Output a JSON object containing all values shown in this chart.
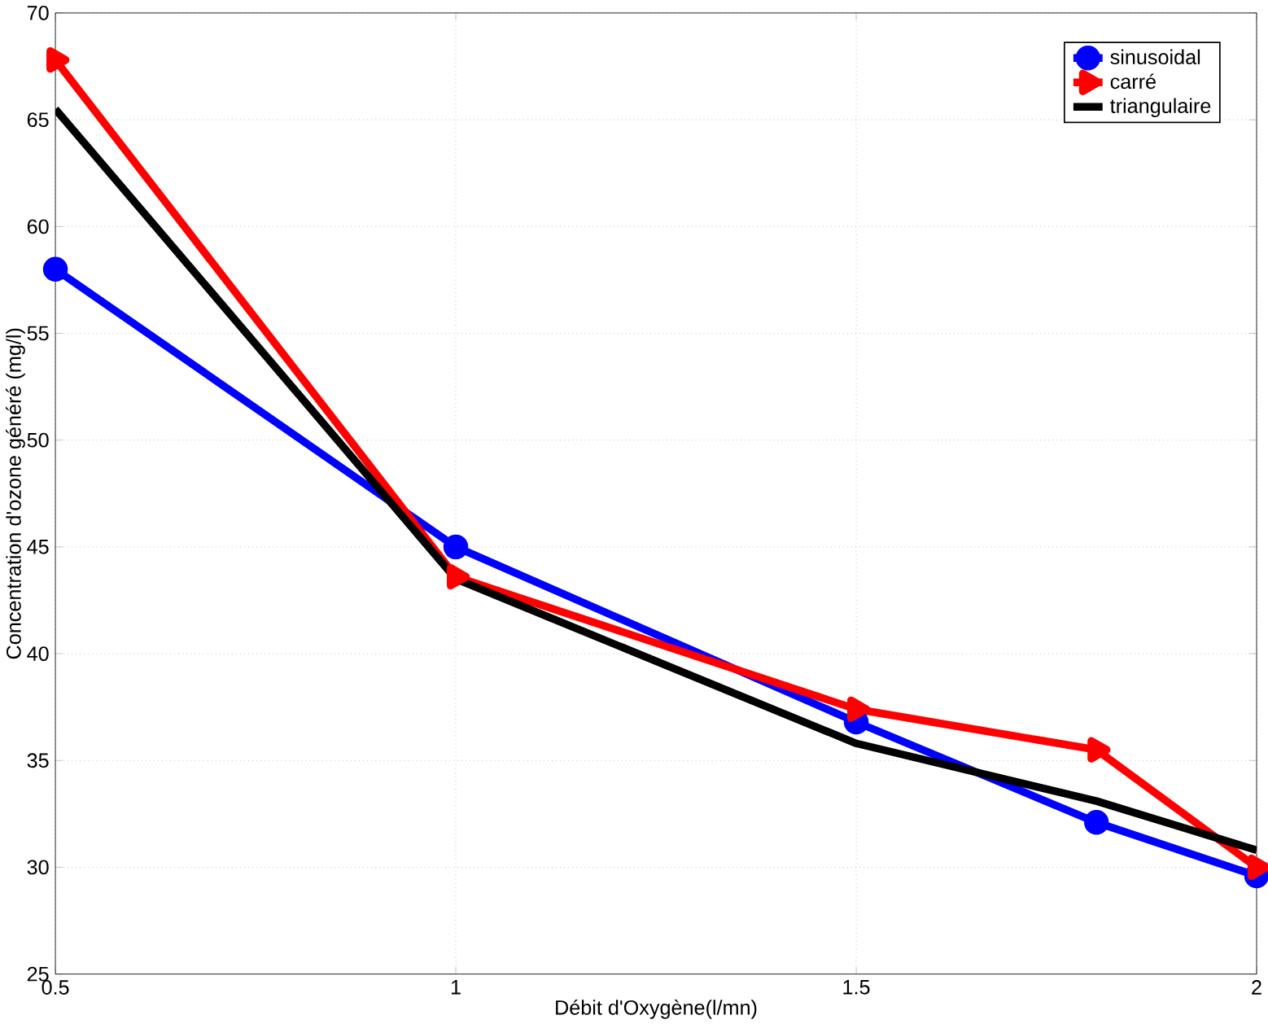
{
  "chart_data": {
    "type": "line",
    "xlabel": "Débit d'Oxygène(l/mn)",
    "ylabel": "Concentration d'ozone généré (mg/l)",
    "x": [
      0.5,
      1,
      1.5,
      1.8,
      2
    ],
    "series": [
      {
        "name": "sinusoidal",
        "color": "#0000ff",
        "marker": "circle",
        "values": [
          58,
          45,
          36.8,
          32.1,
          29.6
        ]
      },
      {
        "name": "carré",
        "color": "#ff0000",
        "marker": "triangle",
        "values": [
          67.8,
          43.6,
          37.4,
          35.5,
          30
        ]
      },
      {
        "name": "triangulaire",
        "color": "#000000",
        "marker": "none",
        "values": [
          65.5,
          43.5,
          35.8,
          33.1,
          30.8
        ]
      }
    ],
    "xlim": [
      0.5,
      2
    ],
    "xticks": [
      0.5,
      1,
      1.5,
      2
    ],
    "ylim": [
      25,
      70
    ],
    "yticks": [
      25,
      30,
      35,
      40,
      45,
      50,
      55,
      60,
      65,
      70
    ],
    "grid": true,
    "legend": "top right",
    "line_style": "solid"
  }
}
